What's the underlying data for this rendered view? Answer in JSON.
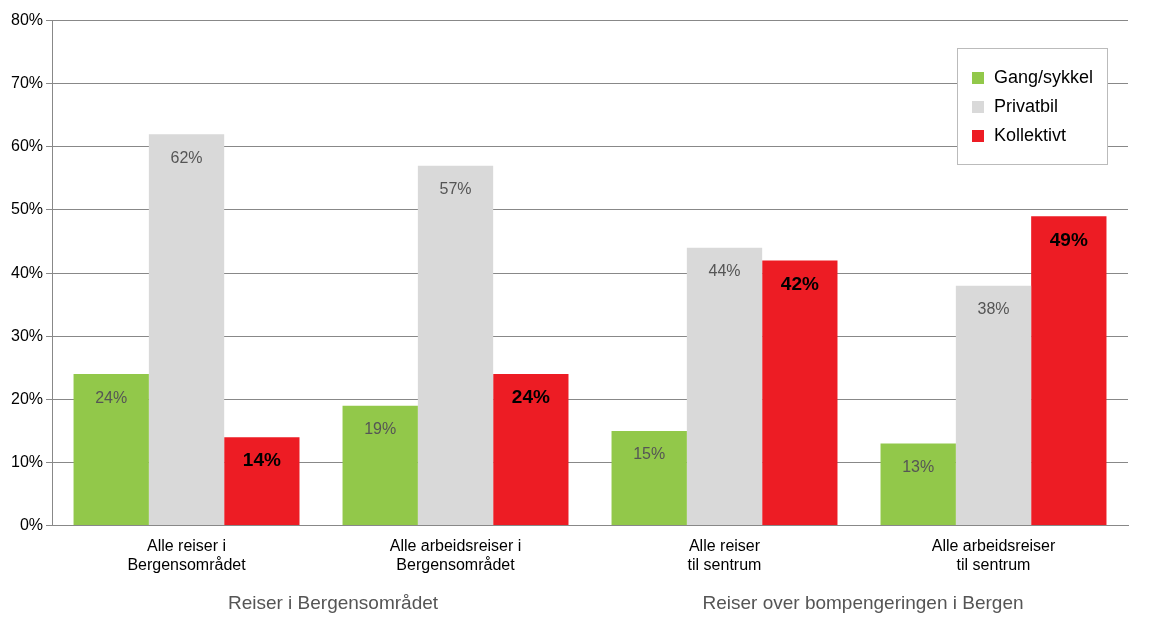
{
  "chart_data": {
    "type": "bar",
    "categories": [
      "Alle reiser i\nBergensområdet",
      "Alle arbeidsreiser i\nBergensområdet",
      "Alle reiser\ntil sentrum",
      "Alle arbeidsreiser\ntil sentrum"
    ],
    "series": [
      {
        "name": "Gang/sykkel",
        "color": "#92c84a",
        "values": [
          24,
          19,
          15,
          13
        ],
        "value_labels": [
          "24%",
          "19%",
          "15%",
          "13%"
        ]
      },
      {
        "name": "Privatbil",
        "color": "#d9d9d9",
        "values": [
          62,
          57,
          44,
          38
        ],
        "value_labels": [
          "62%",
          "57%",
          "44%",
          "38%"
        ]
      },
      {
        "name": "Kollektivt",
        "color": "#ed1c24",
        "values": [
          14,
          24,
          42,
          49
        ],
        "value_labels": [
          "14%",
          "24%",
          "42%",
          "49%"
        ]
      }
    ],
    "ylim": [
      0,
      80
    ],
    "yticks": [
      {
        "value": 0,
        "label": "0%"
      },
      {
        "value": 10,
        "label": "10%"
      },
      {
        "value": 20,
        "label": "20%"
      },
      {
        "value": 30,
        "label": "30%"
      },
      {
        "value": 40,
        "label": "40%"
      },
      {
        "value": 50,
        "label": "50%"
      },
      {
        "value": 60,
        "label": "60%"
      },
      {
        "value": 70,
        "label": "70%"
      },
      {
        "value": 80,
        "label": "80%"
      }
    ],
    "grid": "y",
    "legend": "top right",
    "annotations": [
      "Reiser i Bergensområdet",
      "Reiser over bompengeringen i Bergen"
    ]
  }
}
